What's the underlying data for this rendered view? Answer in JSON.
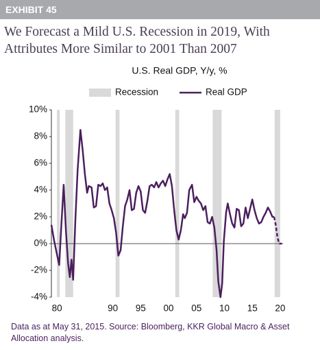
{
  "header": "EXHIBIT 45",
  "title": "We Forecast a Mild U.S. Recession in 2019, With Attributes More Similar to 2001 Than 2007",
  "footer": "Data as at May 31, 2015. Source: Bloomberg, KKR Global Macro & Asset Allocation analysis.",
  "chart_data": {
    "type": "line",
    "title": "U.S. Real GDP, Y/y, %",
    "xlim": [
      1979,
      2020.5
    ],
    "xticks": [
      {
        "value": 1980,
        "label": "80"
      },
      {
        "value": 1990,
        "label": "90"
      },
      {
        "value": 1995,
        "label": "95"
      },
      {
        "value": 2000,
        "label": "00"
      },
      {
        "value": 2005,
        "label": "05"
      },
      {
        "value": 2010,
        "label": "10"
      },
      {
        "value": 2015,
        "label": "15"
      },
      {
        "value": 2020,
        "label": "20"
      }
    ],
    "ylim": [
      -4,
      10
    ],
    "yticks": [
      {
        "value": -4,
        "label": "-4%"
      },
      {
        "value": -2,
        "label": "-2%"
      },
      {
        "value": 0,
        "label": "0%"
      },
      {
        "value": 2,
        "label": "2%"
      },
      {
        "value": 4,
        "label": "4%"
      },
      {
        "value": 6,
        "label": "6%"
      },
      {
        "value": 8,
        "label": "8%"
      },
      {
        "value": 10,
        "label": "10%"
      }
    ],
    "grid": false,
    "recessions": {
      "name": "Recession",
      "color": "#d9d9d9",
      "periods": [
        [
          1980.0,
          1980.5
        ],
        [
          1981.5,
          1982.9
        ],
        [
          1990.5,
          1991.2
        ],
        [
          2001.2,
          2001.9
        ],
        [
          2007.9,
          2009.5
        ],
        [
          2019.0,
          2020.0
        ]
      ]
    },
    "series": [
      {
        "name": "Real GDP",
        "color": "#4b1f5e",
        "x": [
          1979.0,
          1979.5,
          1980.0,
          1980.4,
          1980.8,
          1981.2,
          1981.6,
          1982.0,
          1982.3,
          1982.6,
          1982.9,
          1983.3,
          1983.7,
          1984.2,
          1984.6,
          1985.0,
          1985.4,
          1985.7,
          1986.2,
          1986.6,
          1987.0,
          1987.4,
          1987.8,
          1988.2,
          1988.6,
          1989.0,
          1989.4,
          1989.8,
          1990.2,
          1990.6,
          1991.0,
          1991.4,
          1991.8,
          1992.2,
          1992.6,
          1993.0,
          1993.4,
          1993.8,
          1994.2,
          1994.6,
          1995.0,
          1995.4,
          1995.8,
          1996.2,
          1996.6,
          1997.0,
          1997.4,
          1997.8,
          1998.2,
          1998.6,
          1999.0,
          1999.4,
          1999.8,
          2000.2,
          2000.6,
          2001.0,
          2001.4,
          2001.8,
          2002.2,
          2002.6,
          2002.9,
          2003.3,
          2003.7,
          2004.2,
          2004.6,
          2005.0,
          2005.4,
          2005.8,
          2006.2,
          2006.6,
          2007.0,
          2007.4,
          2007.8,
          2008.2,
          2008.6,
          2008.9,
          2009.3,
          2009.6,
          2009.9,
          2010.3,
          2010.6,
          2011.0,
          2011.4,
          2011.8,
          2012.2,
          2012.6,
          2013.0,
          2013.4,
          2013.8,
          2014.2,
          2014.6,
          2015.0,
          2015.4,
          2015.8,
          2016.2,
          2016.6,
          2017.0,
          2017.4,
          2017.8,
          2018.2,
          2018.6,
          2018.9
        ],
        "values": [
          1.4,
          0.2,
          -0.8,
          -1.6,
          1.5,
          4.4,
          1.0,
          -1.5,
          -2.5,
          -1.2,
          -2.7,
          1.8,
          5.5,
          8.5,
          7.0,
          5.2,
          3.8,
          4.3,
          4.2,
          2.7,
          2.8,
          4.4,
          4.3,
          4.5,
          4.0,
          4.2,
          3.0,
          2.5,
          1.9,
          0.8,
          -0.9,
          -0.5,
          1.3,
          2.8,
          3.3,
          4.0,
          2.5,
          2.6,
          3.8,
          4.3,
          3.9,
          2.5,
          2.3,
          3.2,
          4.3,
          4.4,
          4.2,
          4.6,
          4.2,
          4.5,
          4.7,
          4.3,
          4.8,
          5.2,
          4.3,
          2.5,
          1.0,
          0.3,
          1.0,
          2.2,
          1.9,
          2.3,
          4.0,
          4.4,
          3.1,
          3.5,
          3.2,
          3.0,
          2.5,
          2.8,
          1.6,
          1.5,
          2.0,
          1.2,
          -0.5,
          -2.8,
          -4.0,
          -3.0,
          0.2,
          2.3,
          3.0,
          2.2,
          1.5,
          1.2,
          2.6,
          2.5,
          1.3,
          1.5,
          2.7,
          1.9,
          2.6,
          3.3,
          2.5,
          1.9,
          1.5,
          1.6,
          2.0,
          2.3,
          2.7,
          2.4,
          2.0,
          2.0
        ]
      },
      {
        "color": "#4b1f5e",
        "dashed": true,
        "x": [
          2018.9,
          2019.2,
          2019.5,
          2019.8,
          2020.3
        ],
        "values": [
          2.0,
          1.4,
          0.5,
          0.0,
          0.0
        ]
      }
    ]
  }
}
